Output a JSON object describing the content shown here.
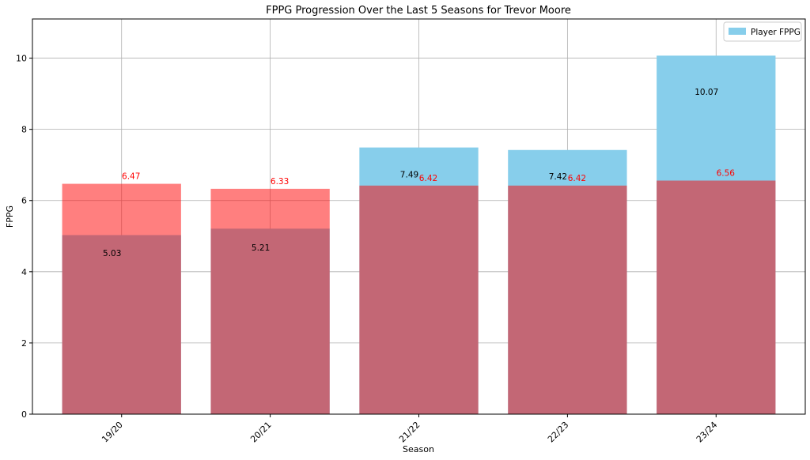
{
  "chart_data": {
    "type": "bar",
    "title": "FPPG Progression Over the Last 5 Seasons for Trevor Moore",
    "xlabel": "Season",
    "ylabel": "FPPG",
    "categories": [
      "19/20",
      "20/21",
      "21/22",
      "22/23",
      "23/24"
    ],
    "series": [
      {
        "name": "Player FPPG",
        "values": [
          5.03,
          5.21,
          7.49,
          7.42,
          10.07
        ],
        "color": "#87ceeb",
        "label_color": "#000000"
      },
      {
        "values": [
          6.47,
          6.33,
          6.42,
          6.42,
          6.56
        ],
        "color": "#ff0000",
        "opacity": 0.5,
        "label_color": "#ff0000"
      }
    ],
    "ylim": [
      0,
      11.1
    ],
    "yticks": [
      0,
      2,
      4,
      6,
      8,
      10
    ],
    "grid": true,
    "legend_position": "top-right"
  }
}
